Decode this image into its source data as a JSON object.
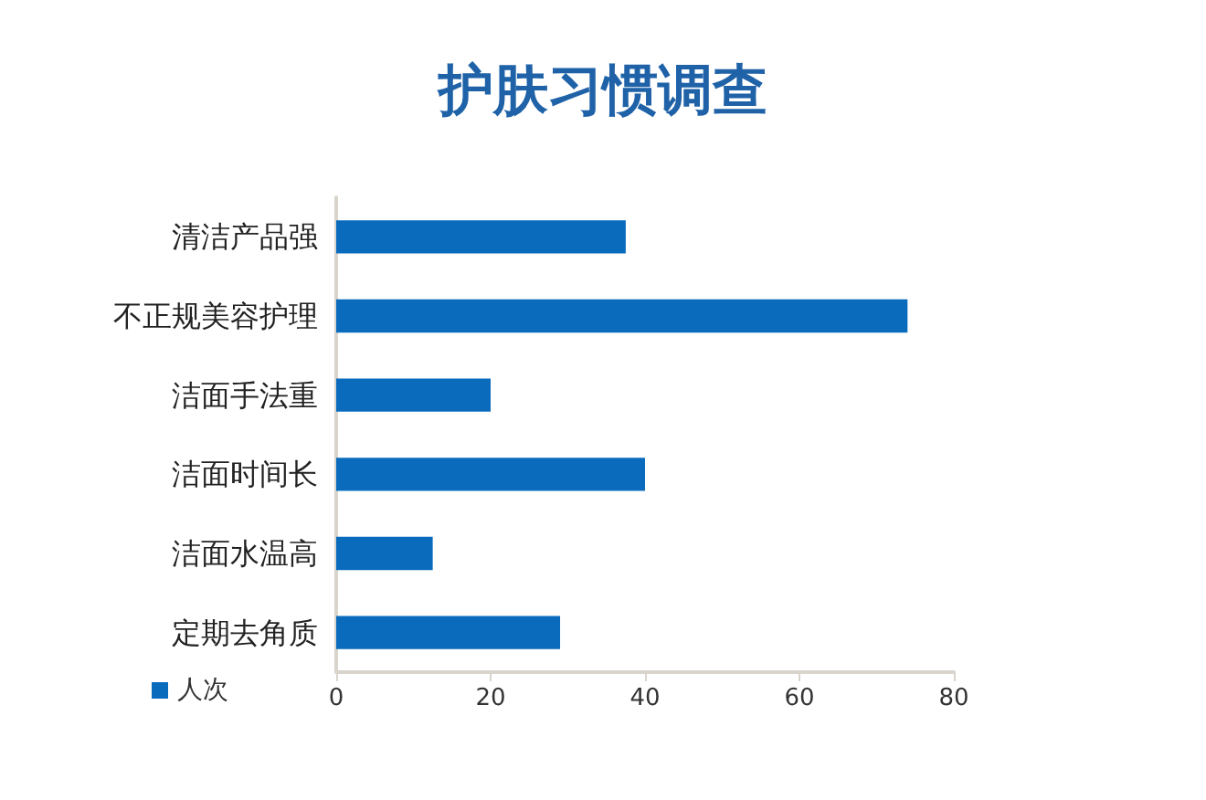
{
  "chart_data": {
    "type": "bar",
    "title": "护肤习惯调查",
    "orientation": "horizontal",
    "categories": [
      "清洁产品强",
      "不正规美容护理",
      "洁面手法重",
      "洁面时间长",
      "洁面水温高",
      "定期去角质"
    ],
    "series": [
      {
        "name": "人次",
        "color": "#0a6bbd",
        "values": [
          37.5,
          74,
          20,
          40,
          12.5,
          29
        ]
      }
    ],
    "xlim": [
      0,
      80
    ],
    "xticks": [
      0,
      20,
      40,
      60,
      80
    ],
    "grid": false,
    "legend": "bottom left"
  }
}
